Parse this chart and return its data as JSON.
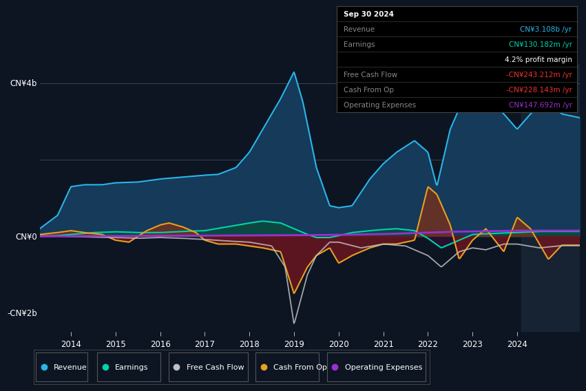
{
  "background_color": "#0d1523",
  "plot_bg_color": "#0d1523",
  "colors": {
    "revenue": "#29b5e8",
    "earnings": "#00d4aa",
    "free_cash_flow": "#c0c0c0",
    "cash_from_op": "#e8a020",
    "operating_expenses": "#9b30d0",
    "revenue_fill": "#153a5a",
    "earnings_fill_pos": "#0a4a40",
    "earnings_fill_neg": "#2a1030",
    "cash_fill_pos": "#6a3010",
    "cash_fill_neg": "#6a1020"
  },
  "legend": [
    {
      "label": "Revenue",
      "color": "#29b5e8"
    },
    {
      "label": "Earnings",
      "color": "#00d4aa"
    },
    {
      "label": "Free Cash Flow",
      "color": "#c0c0c0"
    },
    {
      "label": "Cash From Op",
      "color": "#e8a020"
    },
    {
      "label": "Operating Expenses",
      "color": "#9b30d0"
    }
  ],
  "ylim": [
    -2500000000.0,
    4500000000.0
  ],
  "xlim": [
    2013.3,
    2025.4
  ],
  "xticks": [
    2014,
    2015,
    2016,
    2017,
    2018,
    2019,
    2020,
    2021,
    2022,
    2023,
    2024
  ],
  "shade_start": 2024.1,
  "grid_lines": [
    4000000000.0,
    2000000000.0,
    0
  ],
  "ylabel_top": "CN¥4b",
  "ylabel_mid": "CN¥0",
  "ylabel_bot": "-CN¥2b"
}
